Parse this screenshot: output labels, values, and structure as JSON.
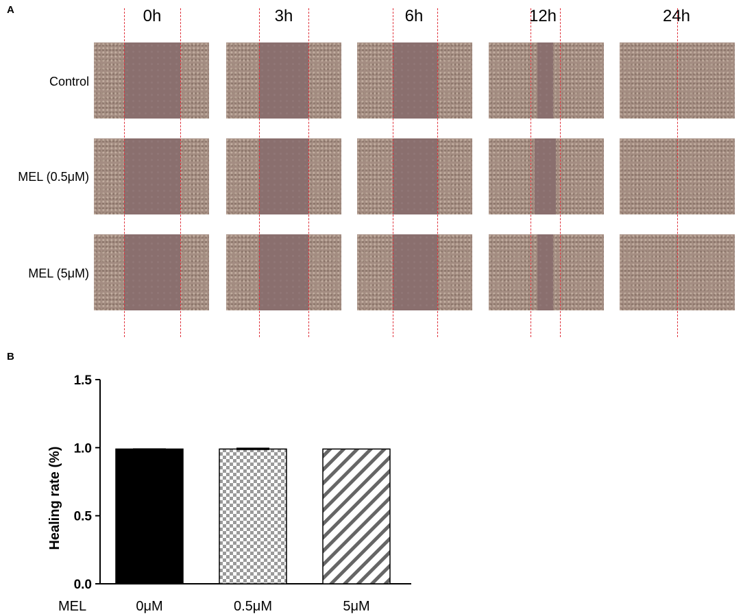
{
  "panel_a": {
    "letter": "A",
    "time_points": [
      "0h",
      "3h",
      "6h",
      "12h",
      "24h"
    ],
    "rows": [
      "Control",
      "MEL (0.5μM)",
      "MEL (5μM)"
    ]
  },
  "panel_b": {
    "letter": "B"
  },
  "chart_data": {
    "type": "bar",
    "title": "",
    "ylabel": "Healing rate (%)",
    "xlabel": "",
    "x_group_label": "MEL",
    "categories": [
      "0μM",
      "0.5μM",
      "5μM"
    ],
    "values": [
      0.99,
      0.99,
      0.99
    ],
    "errors": [
      0.005,
      0.01,
      0.0
    ],
    "ylim": [
      0.0,
      1.5
    ],
    "yticks": [
      0.0,
      0.5,
      1.0,
      1.5
    ],
    "ytick_labels": [
      "0.0",
      "0.5",
      "1.0",
      "1.5"
    ],
    "bar_fills": [
      "solid-black",
      "checkerboard",
      "diagonal-stripes"
    ],
    "grid": false
  }
}
